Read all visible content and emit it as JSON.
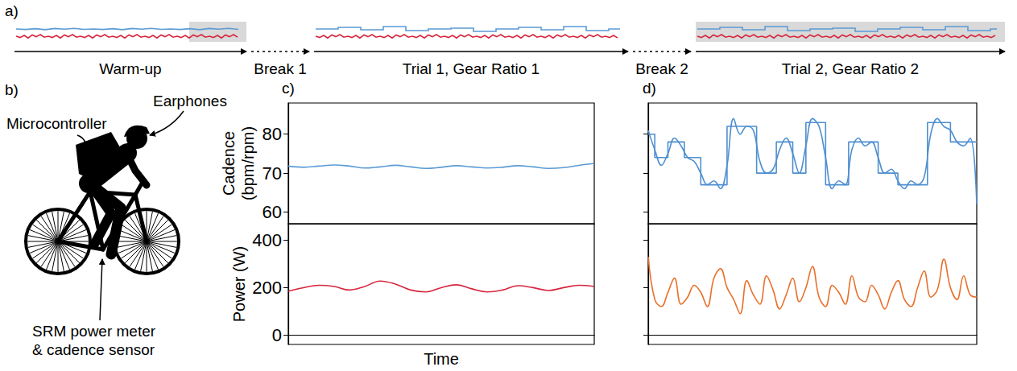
{
  "chart_data": [
    {
      "panel": "c)",
      "type": "line",
      "ylabel": "Cadence (bpm/rpm)",
      "color": "#5b9bd5",
      "x": [
        0,
        1,
        2,
        3,
        4,
        5,
        6,
        7,
        8,
        9,
        10,
        11,
        12,
        13,
        14,
        15,
        16,
        17,
        18,
        19,
        20
      ],
      "values": [
        71.8,
        71.5,
        71.8,
        72.1,
        71.8,
        71.3,
        71.6,
        72.0,
        71.6,
        71.2,
        71.5,
        71.9,
        71.6,
        71.3,
        71.5,
        71.9,
        71.6,
        71.2,
        71.4,
        72.0,
        72.5
      ],
      "xlim": [
        0,
        20
      ],
      "ylim": [
        57,
        88
      ],
      "yticks": [
        60,
        70,
        80
      ],
      "grid": false,
      "tick_labels": "y"
    },
    {
      "type": "line",
      "ylabel": "Power (W)",
      "xlabel": "Time",
      "color": "#d7263d",
      "x": [
        0,
        1,
        2,
        3,
        4,
        5,
        6,
        7,
        8,
        9,
        10,
        11,
        12,
        13,
        14,
        15,
        16,
        17,
        18,
        19,
        20
      ],
      "values": [
        185,
        200,
        210,
        205,
        190,
        205,
        228,
        215,
        190,
        182,
        200,
        212,
        195,
        182,
        190,
        208,
        200,
        188,
        200,
        210,
        205
      ],
      "xlim": [
        0,
        20
      ],
      "ylim": [
        -40,
        470
      ],
      "yticks": [
        0,
        200,
        400
      ],
      "grid": false,
      "tick_labels": "y"
    },
    {
      "panel": "d)",
      "type": "line",
      "x": [
        0,
        2,
        4,
        6,
        8,
        10,
        12,
        14,
        16,
        18,
        20,
        22,
        24,
        26,
        28,
        30,
        32,
        34,
        36,
        38,
        40,
        42,
        44,
        46,
        48,
        50,
        52,
        54,
        56,
        58,
        60,
        62,
        64,
        66,
        68,
        70,
        72,
        74,
        76,
        78,
        80,
        82,
        84,
        86,
        88,
        90,
        92,
        94,
        96,
        98,
        100
      ],
      "series": [
        {
          "type": "step",
          "color": "#4e8fd0",
          "x": [
            0,
            2,
            6,
            11,
            16,
            24,
            33,
            39,
            44,
            48,
            54,
            61,
            70,
            76,
            85,
            92,
            100
          ],
          "values": [
            80,
            74,
            78,
            74,
            67,
            82,
            70,
            78,
            70,
            83,
            67,
            78,
            70,
            67,
            83,
            78,
            78
          ]
        },
        {
          "type": "line",
          "color": "#4e8fd0",
          "values": [
            81,
            76,
            72,
            75,
            79,
            77,
            74,
            73,
            70,
            67,
            68,
            66,
            72,
            84,
            80,
            82,
            81,
            73,
            70,
            71,
            76,
            79,
            75,
            70,
            77,
            84,
            82,
            74,
            66,
            68,
            67,
            76,
            79,
            77,
            78,
            74,
            70,
            71,
            68,
            66,
            68,
            67,
            69,
            80,
            84,
            82,
            81,
            78,
            77,
            79,
            62
          ]
        }
      ],
      "xlim": [
        0,
        100
      ],
      "ylim": [
        57,
        88
      ],
      "yticks": [
        60,
        70,
        80
      ],
      "grid": false,
      "tick_labels": false
    },
    {
      "type": "line",
      "color": "#e8702a",
      "x": [
        0,
        2,
        4,
        6,
        8,
        10,
        12,
        14,
        16,
        18,
        20,
        22,
        24,
        26,
        28,
        30,
        32,
        34,
        36,
        38,
        40,
        42,
        44,
        46,
        48,
        50,
        52,
        54,
        56,
        58,
        60,
        62,
        64,
        66,
        68,
        70,
        72,
        74,
        76,
        78,
        80,
        82,
        84,
        86,
        88,
        90,
        92,
        94,
        96,
        98,
        100
      ],
      "values": [
        330,
        150,
        120,
        180,
        240,
        130,
        160,
        210,
        180,
        120,
        240,
        280,
        200,
        150,
        90,
        230,
        170,
        130,
        250,
        190,
        110,
        170,
        240,
        140,
        200,
        290,
        160,
        120,
        210,
        180,
        130,
        250,
        160,
        140,
        210,
        170,
        110,
        180,
        230,
        150,
        120,
        200,
        270,
        160,
        190,
        320,
        200,
        150,
        250,
        170,
        160
      ],
      "xlim": [
        0,
        100
      ],
      "ylim": [
        -40,
        470
      ],
      "yticks": [
        0,
        200,
        400
      ],
      "grid": false,
      "tick_labels": false
    }
  ],
  "diagram": {
    "a": {
      "label": "a)",
      "phases": [
        "Warm-up",
        "Break 1",
        "Trial 1, Gear Ratio 1",
        "Break 2",
        "Trial 2, Gear Ratio 2"
      ]
    },
    "b": {
      "label": "b)",
      "callouts": [
        "Microcontroller",
        "Earphones",
        "SRM power meter & cadence sensor"
      ]
    }
  }
}
